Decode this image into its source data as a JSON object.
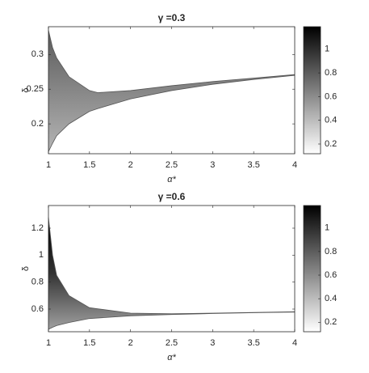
{
  "chart_data": [
    {
      "type": "band",
      "title": "γ =0.3",
      "x_label": "α*",
      "y_label": "δ",
      "x": [
        1,
        1.05,
        1.1,
        1.25,
        1.5,
        1.6,
        2,
        2.5,
        3,
        3.5,
        4
      ],
      "series": [
        {
          "name": "upper",
          "values": [
            0.335,
            0.31,
            0.295,
            0.268,
            0.248,
            0.245,
            0.248,
            0.255,
            0.261,
            0.266,
            0.271
          ]
        },
        {
          "name": "lower",
          "values": [
            0.16,
            0.172,
            0.183,
            0.2,
            0.218,
            0.222,
            0.236,
            0.248,
            0.257,
            0.264,
            0.27
          ]
        }
      ],
      "xlim": [
        1,
        4
      ],
      "xticks": [
        1,
        1.5,
        2,
        2.5,
        3,
        3.5,
        4
      ],
      "ylim": [
        0.157,
        0.34
      ],
      "yticks": [
        0.2,
        0.25,
        0.3
      ],
      "clim": [
        0.118,
        1.19
      ],
      "cticks": [
        0.2,
        0.4,
        0.6,
        0.8,
        1
      ],
      "colormap": [
        "#ffffff",
        "#000000"
      ]
    },
    {
      "type": "band",
      "title": "γ =0.6",
      "x_label": "α*",
      "y_label": "δ",
      "x": [
        1,
        1.05,
        1.1,
        1.25,
        1.5,
        2,
        2.5,
        3,
        3.5,
        4
      ],
      "series": [
        {
          "name": "upper",
          "values": [
            1.28,
            1.0,
            0.85,
            0.7,
            0.61,
            0.57,
            0.565,
            0.57,
            0.575,
            0.58
          ]
        },
        {
          "name": "lower",
          "values": [
            0.45,
            0.465,
            0.478,
            0.5,
            0.53,
            0.55,
            0.56,
            0.567,
            0.573,
            0.578
          ]
        }
      ],
      "xlim": [
        1,
        4
      ],
      "xticks": [
        1,
        1.5,
        2,
        2.5,
        3,
        3.5,
        4
      ],
      "ylim": [
        0.432,
        1.368
      ],
      "yticks": [
        0.6,
        0.8,
        1,
        1.2
      ],
      "clim": [
        0.12,
        1.19
      ],
      "cticks": [
        0.2,
        0.4,
        0.6,
        0.8,
        1
      ],
      "colormap": [
        "#ffffff",
        "#000000"
      ]
    }
  ]
}
